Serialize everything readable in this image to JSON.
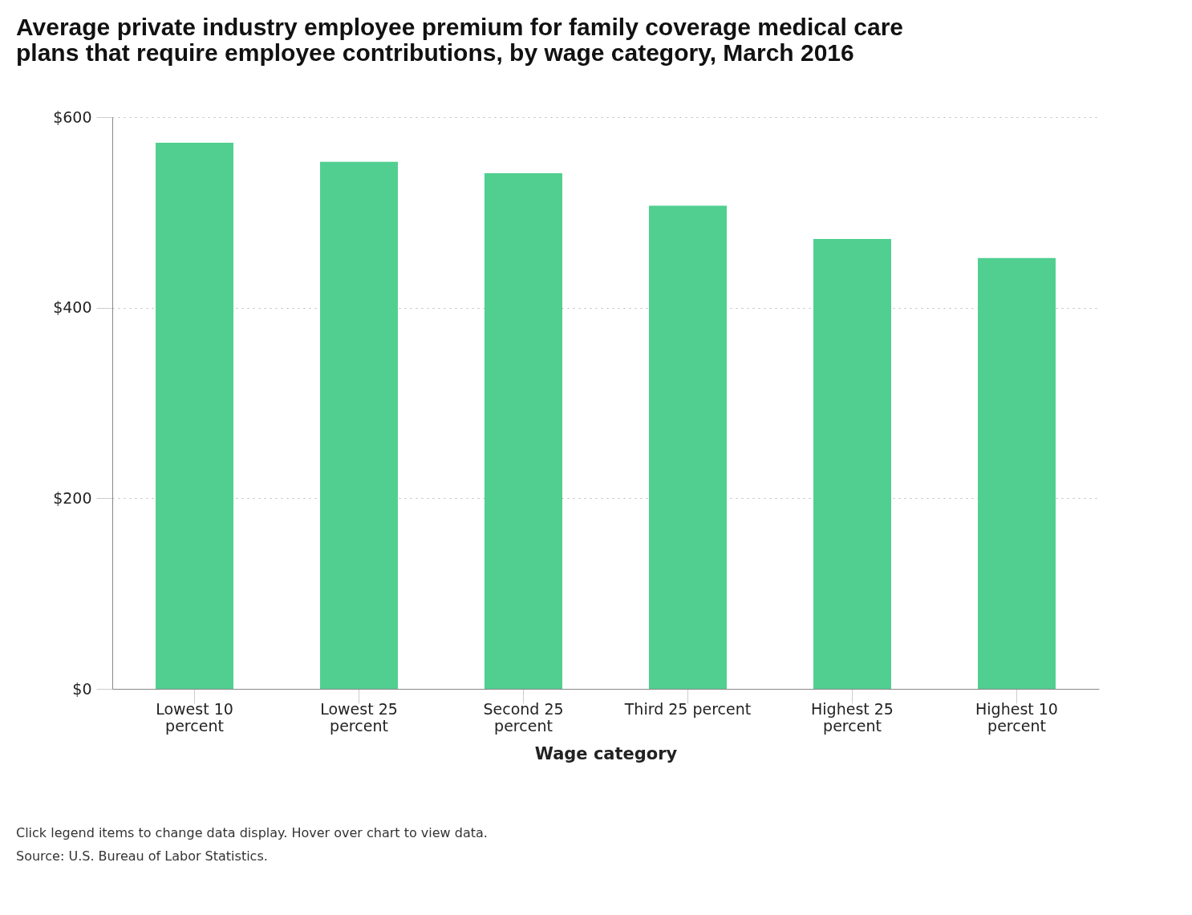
{
  "chart_data": {
    "type": "bar",
    "title": [
      "Average private industry employee premium for family coverage medical care",
      "plans that require employee contributions, by wage category, March 2016"
    ],
    "categories": [
      "Lowest 10 percent",
      "Lowest 25 percent",
      "Second 25 percent",
      "Third 25 percent",
      "Highest 25 percent",
      "Highest 10 percent"
    ],
    "values": [
      573,
      553,
      541,
      507,
      472,
      452
    ],
    "color": "#51cf91",
    "xlabel": "Wage category",
    "ylim": [
      0,
      600
    ],
    "yticks": [
      {
        "value": 0,
        "label": "$0"
      },
      {
        "value": 200,
        "label": "$200"
      },
      {
        "value": 400,
        "label": "$400"
      },
      {
        "value": 600,
        "label": "$600"
      }
    ],
    "grid": "y",
    "annotations": [
      "Click legend items to change data display. Hover over chart to view data.",
      "Source: U.S. Bureau of Labor Statistics."
    ]
  }
}
